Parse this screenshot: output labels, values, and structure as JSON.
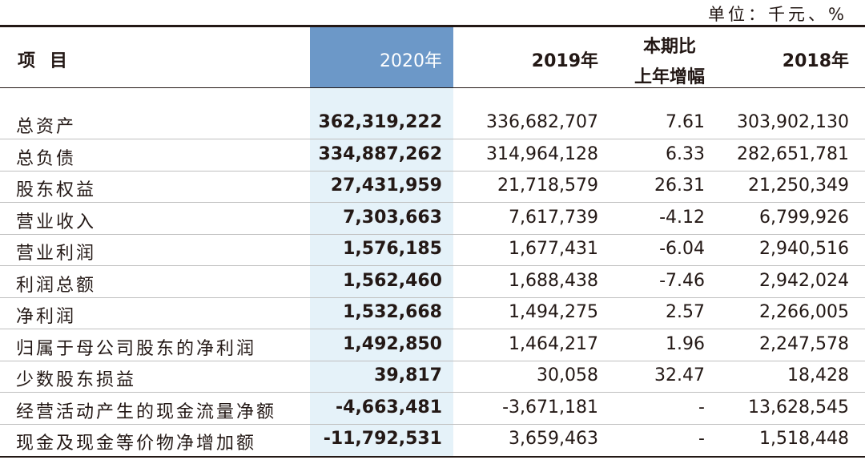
{
  "unit_note": "单位：千元、%",
  "header": {
    "item": "项目",
    "y2020": "2020年",
    "y2019": "2019年",
    "change_line1": "本期比",
    "change_line2": "上年增幅",
    "y2018": "2018年"
  },
  "rows": [
    {
      "name": "总资产",
      "y2020": "362,319,222",
      "y2019": "336,682,707",
      "change": "7.61",
      "y2018": "303,902,130"
    },
    {
      "name": "总负债",
      "y2020": "334,887,262",
      "y2019": "314,964,128",
      "change": "6.33",
      "y2018": "282,651,781"
    },
    {
      "name": "股东权益",
      "y2020": "27,431,959",
      "y2019": "21,718,579",
      "change": "26.31",
      "y2018": "21,250,349"
    },
    {
      "name": "营业收入",
      "y2020": "7,303,663",
      "y2019": "7,617,739",
      "change": "-4.12",
      "y2018": "6,799,926"
    },
    {
      "name": "营业利润",
      "y2020": "1,576,185",
      "y2019": "1,677,431",
      "change": "-6.04",
      "y2018": "2,940,516"
    },
    {
      "name": "利润总额",
      "y2020": "1,562,460",
      "y2019": "1,688,438",
      "change": "-7.46",
      "y2018": "2,942,024"
    },
    {
      "name": "净利润",
      "y2020": "1,532,668",
      "y2019": "1,494,275",
      "change": "2.57",
      "y2018": "2,266,005"
    },
    {
      "name": "归属于母公司股东的净利润",
      "y2020": "1,492,850",
      "y2019": "1,464,217",
      "change": "1.96",
      "y2018": "2,247,578"
    },
    {
      "name": "少数股东损益",
      "y2020": "39,817",
      "y2019": "30,058",
      "change": "32.47",
      "y2018": "18,428"
    },
    {
      "name": "经营活动产生的现金流量净额",
      "y2020": "-4,663,481",
      "y2019": "-3,671,181",
      "change": "-",
      "y2018": "13,628,545"
    },
    {
      "name": "现金及现金等价物净增加额",
      "y2020": "-11,792,531",
      "y2019": "3,659,463",
      "change": "-",
      "y2018": "1,518,448"
    }
  ],
  "colors": {
    "highlight_header": "#6c98c8",
    "highlight_column": "#e5f2f9",
    "text": "#231815"
  }
}
